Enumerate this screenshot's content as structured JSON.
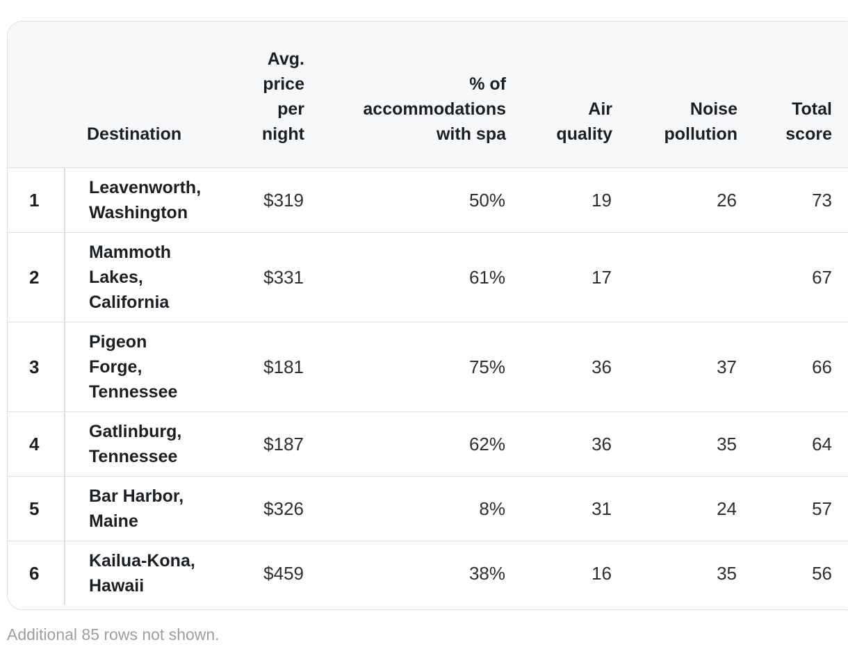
{
  "table": {
    "headers": {
      "rank": "",
      "destination": "Destination",
      "price": "Avg. price per night",
      "spa": "% of accommodations with spa",
      "air": "Air quality",
      "noise": "Noise pollution",
      "total": "Total score"
    },
    "rows": [
      {
        "rank": "1",
        "destination": "Leavenworth, Washington",
        "price": "$319",
        "spa": "50%",
        "air": "19",
        "noise": "26",
        "total": "73"
      },
      {
        "rank": "2",
        "destination": "Mammoth Lakes, California",
        "price": "$331",
        "spa": "61%",
        "air": "17",
        "noise": "",
        "total": "67"
      },
      {
        "rank": "3",
        "destination": "Pigeon Forge, Tennessee",
        "price": "$181",
        "spa": "75%",
        "air": "36",
        "noise": "37",
        "total": "66"
      },
      {
        "rank": "4",
        "destination": "Gatlinburg, Tennessee",
        "price": "$187",
        "spa": "62%",
        "air": "36",
        "noise": "35",
        "total": "64"
      },
      {
        "rank": "5",
        "destination": "Bar Harbor, Maine",
        "price": "$326",
        "spa": "8%",
        "air": "31",
        "noise": "24",
        "total": "57"
      },
      {
        "rank": "6",
        "destination": "Kailua-Kona, Hawaii",
        "price": "$459",
        "spa": "38%",
        "air": "16",
        "noise": "35",
        "total": "56"
      }
    ]
  },
  "footnote": "Additional 85 rows not shown."
}
